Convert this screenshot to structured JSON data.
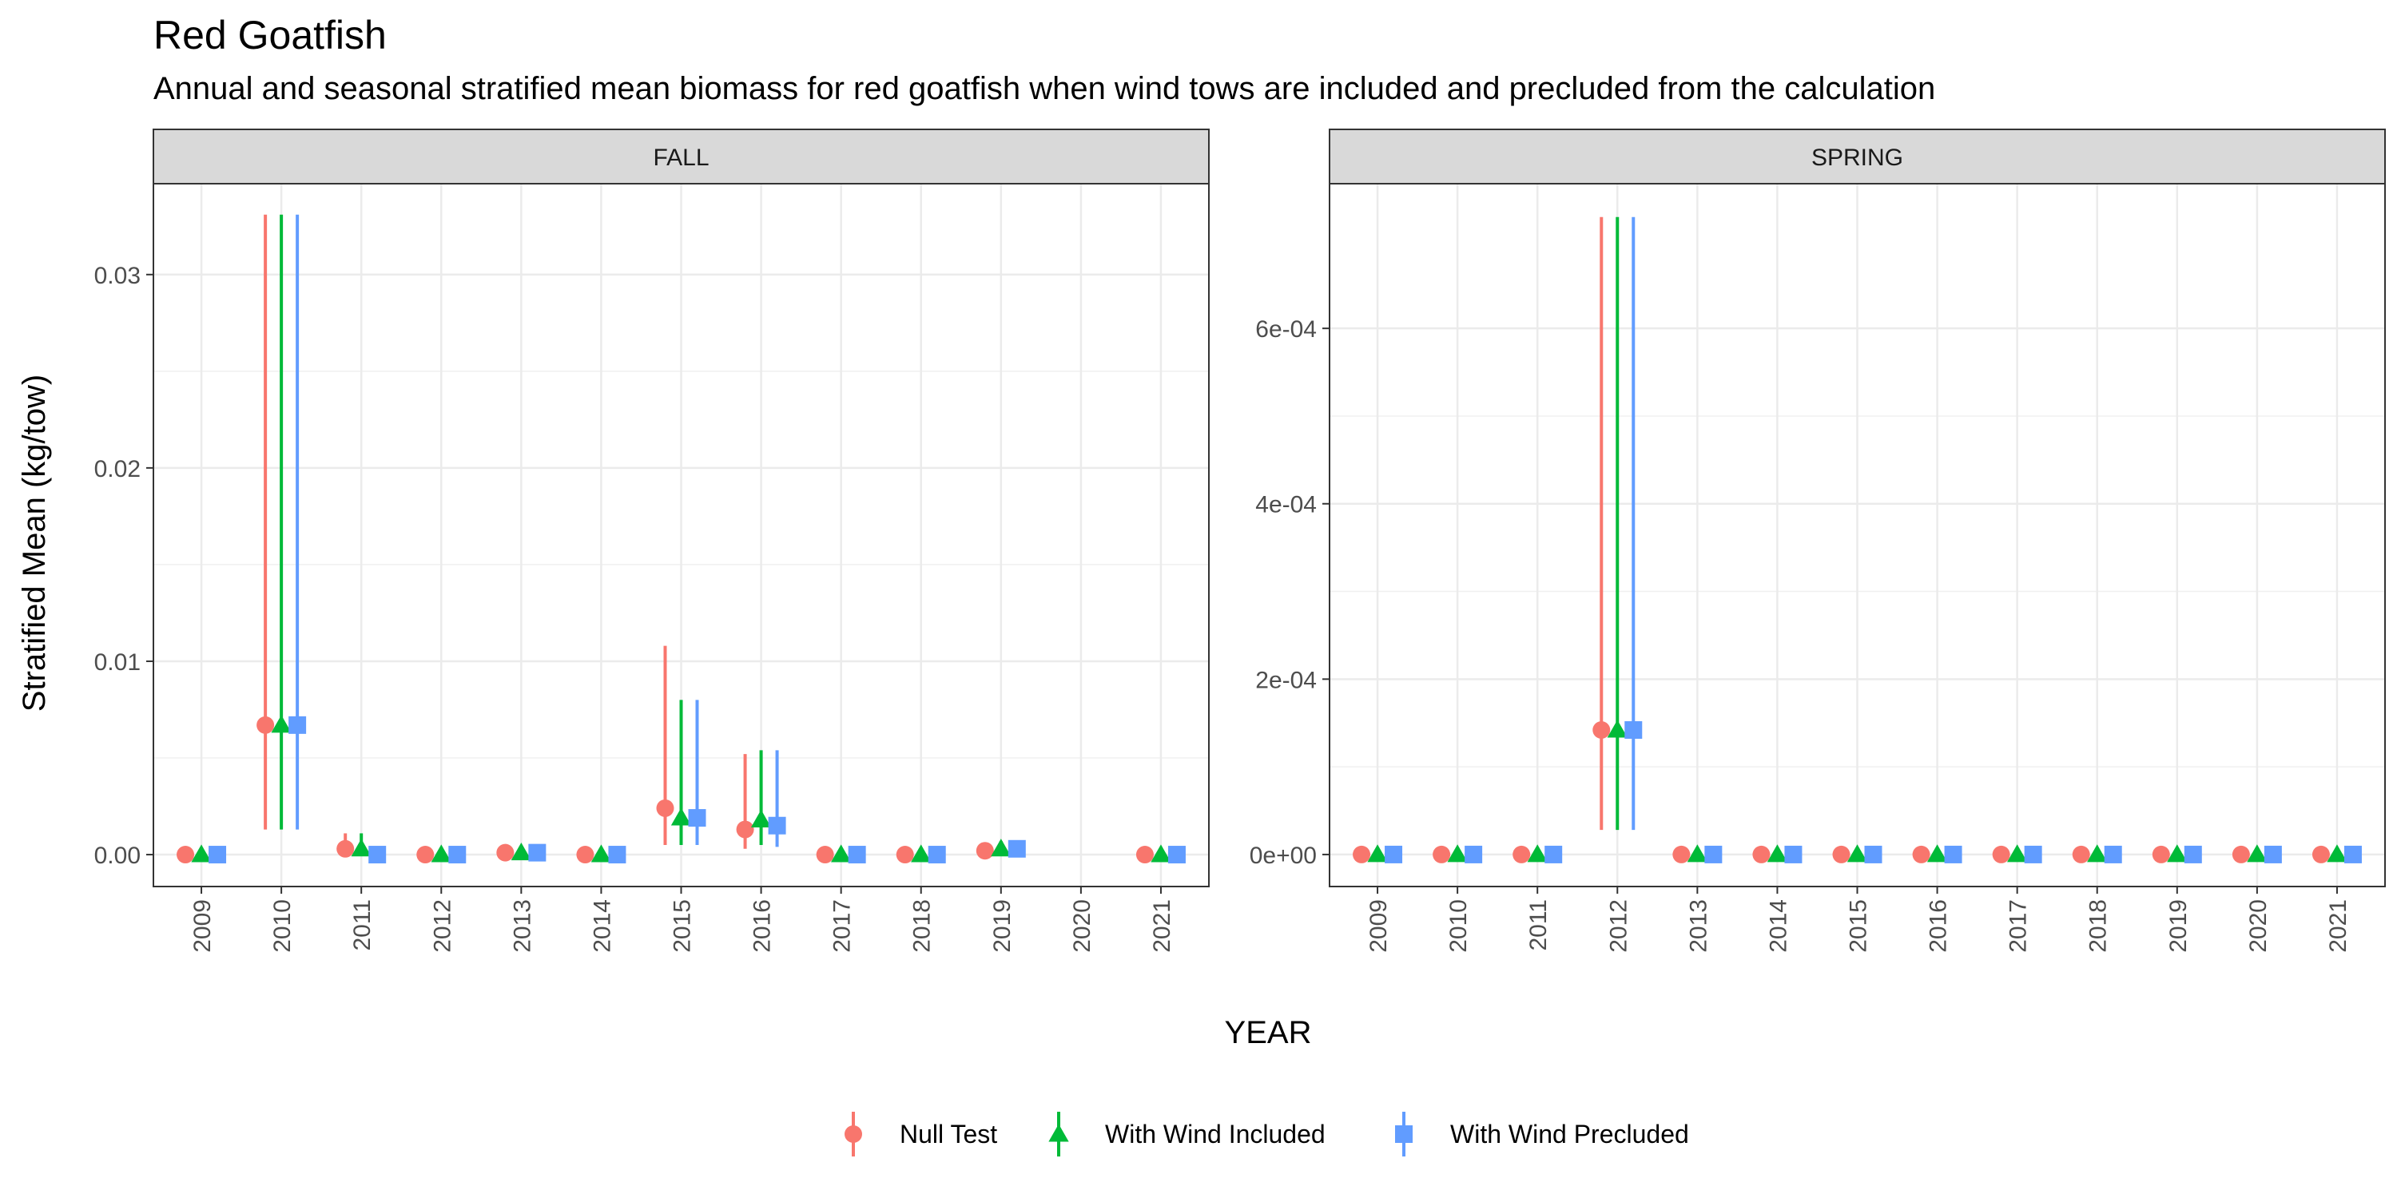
{
  "title": "Red Goatfish",
  "subtitle": "Annual and seasonal stratified mean biomass for red goatfish when wind tows are included and precluded from the calculation",
  "chart_data": {
    "type": "scatter",
    "xlabel": "YEAR",
    "ylabel": "Stratified Mean (kg/tow)",
    "grid": true,
    "legend_position": "bottom",
    "series_styles": [
      {
        "name": "Null Test",
        "color": "#F8766D",
        "shape": "circle"
      },
      {
        "name": "With Wind Included",
        "color": "#00BA38",
        "shape": "triangle"
      },
      {
        "name": "With Wind Precluded",
        "color": "#619CFF",
        "shape": "square"
      }
    ],
    "panels": [
      {
        "strip": "FALL",
        "x": [
          "2009",
          "2010",
          "2011",
          "2012",
          "2013",
          "2014",
          "2015",
          "2016",
          "2017",
          "2018",
          "2019",
          "2020",
          "2021"
        ],
        "ylim": [
          -0.00165,
          0.0347
        ],
        "yticks": [
          0,
          0.01,
          0.02,
          0.03
        ],
        "ytick_labels": [
          "0.00",
          "0.01",
          "0.02",
          "0.03"
        ],
        "series": [
          {
            "name": "Null Test",
            "values": [
              0.0,
              0.0067,
              0.0003,
              0.0,
              0.0001,
              0.0,
              0.0024,
              0.0013,
              0.0,
              0.0,
              0.0002,
              null,
              0.0
            ],
            "lower": [
              0.0,
              0.0013,
              0.0,
              0.0,
              0.0,
              0.0,
              0.0005,
              0.0003,
              0.0,
              0.0,
              0.0,
              null,
              0.0
            ],
            "upper": [
              0.0,
              0.0331,
              0.0011,
              0.0,
              0.0002,
              0.0,
              0.0108,
              0.0052,
              0.0,
              0.0,
              0.0006,
              null,
              0.0
            ]
          },
          {
            "name": "With Wind Included",
            "values": [
              0.0,
              0.0067,
              0.0003,
              0.0,
              0.0001,
              0.0,
              0.0019,
              0.0018,
              0.0,
              0.0,
              0.0003,
              null,
              0.0
            ],
            "lower": [
              0.0,
              0.0013,
              0.0,
              0.0,
              0.0,
              0.0,
              0.0005,
              0.0005,
              0.0,
              0.0,
              0.0,
              null,
              0.0
            ],
            "upper": [
              0.0,
              0.0331,
              0.0011,
              0.0,
              0.0002,
              0.0,
              0.008,
              0.0054,
              0.0,
              0.0,
              0.0007,
              null,
              0.0
            ]
          },
          {
            "name": "With Wind Precluded",
            "values": [
              0.0,
              0.0067,
              0.0,
              0.0,
              0.0001,
              0.0,
              0.0019,
              0.0015,
              0.0,
              0.0,
              0.0003,
              null,
              0.0
            ],
            "lower": [
              0.0,
              0.0013,
              0.0,
              0.0,
              0.0,
              0.0,
              0.0005,
              0.0004,
              0.0,
              0.0,
              0.0,
              null,
              0.0
            ],
            "upper": [
              0.0,
              0.0331,
              0.0,
              0.0,
              0.0002,
              0.0,
              0.008,
              0.0054,
              0.0,
              0.0,
              0.0007,
              null,
              0.0
            ]
          }
        ]
      },
      {
        "strip": "SPRING",
        "x": [
          "2009",
          "2010",
          "2011",
          "2012",
          "2013",
          "2014",
          "2015",
          "2016",
          "2017",
          "2018",
          "2019",
          "2020",
          "2021"
        ],
        "ylim": [
          -3.65e-05,
          0.000765
        ],
        "yticks": [
          0,
          0.0002,
          0.0004,
          0.0006
        ],
        "ytick_labels": [
          "0e+00",
          "2e-04",
          "4e-04",
          "6e-04"
        ],
        "series": [
          {
            "name": "Null Test",
            "values": [
              0,
              0,
              0,
              0.000142,
              0,
              0,
              0,
              0,
              0,
              0,
              0,
              0,
              0
            ],
            "lower": [
              0,
              0,
              0,
              2.8e-05,
              0,
              0,
              0,
              0,
              0,
              0,
              0,
              0,
              0
            ],
            "upper": [
              0,
              0,
              0,
              0.000727,
              0,
              0,
              0,
              0,
              0,
              0,
              0,
              0,
              0
            ]
          },
          {
            "name": "With Wind Included",
            "values": [
              0,
              0,
              0,
              0.000142,
              0,
              0,
              0,
              0,
              0,
              0,
              0,
              0,
              0
            ],
            "lower": [
              0,
              0,
              0,
              2.8e-05,
              0,
              0,
              0,
              0,
              0,
              0,
              0,
              0,
              0
            ],
            "upper": [
              0,
              0,
              0,
              0.000727,
              0,
              0,
              0,
              0,
              0,
              0,
              0,
              0,
              0
            ]
          },
          {
            "name": "With Wind Precluded",
            "values": [
              0,
              0,
              0,
              0.000142,
              0,
              0,
              0,
              0,
              0,
              0,
              0,
              0,
              0
            ],
            "lower": [
              0,
              0,
              0,
              2.8e-05,
              0,
              0,
              0,
              0,
              0,
              0,
              0,
              0,
              0
            ],
            "upper": [
              0,
              0,
              0,
              0.000727,
              0,
              0,
              0,
              0,
              0,
              0,
              0,
              0,
              0
            ]
          }
        ]
      }
    ]
  }
}
